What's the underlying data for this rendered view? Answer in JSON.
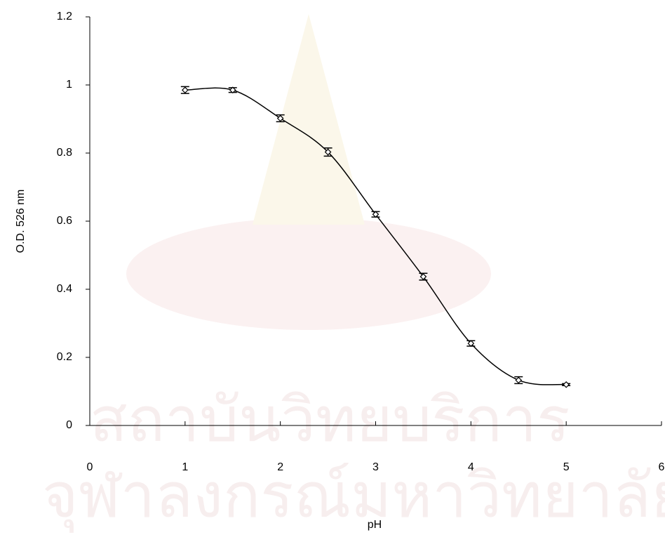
{
  "chart_data": {
    "type": "line",
    "x_label": "pH",
    "y_label": "O.D. 526 nm",
    "x": [
      1,
      1.5,
      2,
      2.5,
      3,
      3.5,
      4,
      4.5,
      5
    ],
    "series": [
      {
        "color": "#000000",
        "values": [
          0.985,
          0.985,
          0.902,
          0.803,
          0.62,
          0.437,
          0.241,
          0.133,
          0.12
        ],
        "errors": [
          0.01,
          0.007,
          0.01,
          0.012,
          0.008,
          0.01,
          0.008,
          0.01,
          0.003
        ]
      }
    ],
    "xlim": [
      0,
      6
    ],
    "xticks": [
      0,
      1,
      2,
      3,
      4,
      5,
      6
    ],
    "ylim": [
      0,
      1.2
    ],
    "yticks": [
      0,
      0.2,
      0.4,
      0.6,
      0.8,
      1,
      1.2
    ],
    "watermark": [
      "สถาบันวิทยบริการ",
      "จุฬาลงกรณ์มหาวิทยาลัย"
    ]
  }
}
